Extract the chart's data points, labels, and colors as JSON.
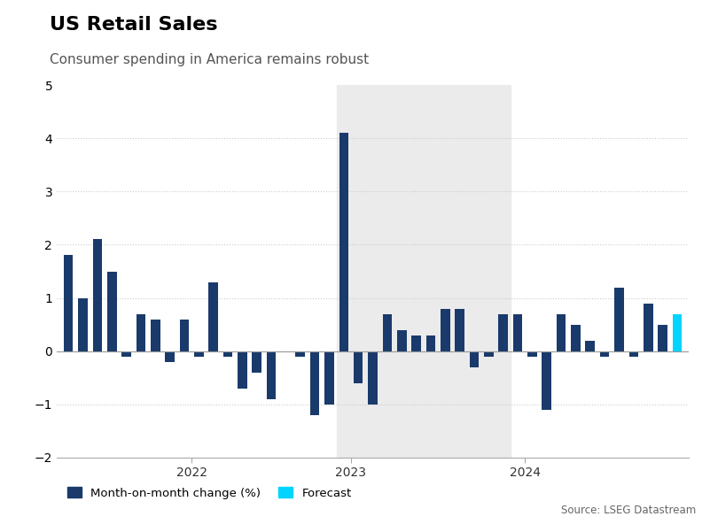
{
  "title": "US Retail Sales",
  "subtitle": "Consumer spending in America remains robust",
  "source": "Source: LSEG Datastream",
  "ylim": [
    -2,
    5
  ],
  "yticks": [
    -2,
    -1,
    0,
    1,
    2,
    3,
    4,
    5
  ],
  "bar_color": "#1a3a6b",
  "forecast_color": "#00d4ff",
  "background_color": "#ffffff",
  "shade_color": "#ebebeb",
  "legend_label_bar": "Month-on-month change (%)",
  "legend_label_forecast": "Forecast",
  "values": [
    1.8,
    1.0,
    2.1,
    1.5,
    -0.1,
    0.7,
    0.6,
    -0.2,
    0.6,
    -0.1,
    1.3,
    -0.1,
    -0.7,
    -0.4,
    -0.9,
    0.0,
    -0.1,
    -1.2,
    -1.0,
    4.1,
    -0.6,
    -1.0,
    0.7,
    0.4,
    0.3,
    0.3,
    0.8,
    0.8,
    -0.3,
    -0.1,
    0.7,
    0.7,
    -0.1,
    -1.1,
    0.7,
    0.5,
    0.2,
    -0.1,
    1.2,
    -0.1,
    0.9,
    0.5,
    0.7
  ],
  "shade_start_idx": 19,
  "shade_end_idx": 31,
  "forecast_idx": 42,
  "xtick_positions": [
    8.5,
    19.5,
    31.5
  ],
  "xtick_labels": [
    "2022",
    "2023",
    "2024"
  ]
}
